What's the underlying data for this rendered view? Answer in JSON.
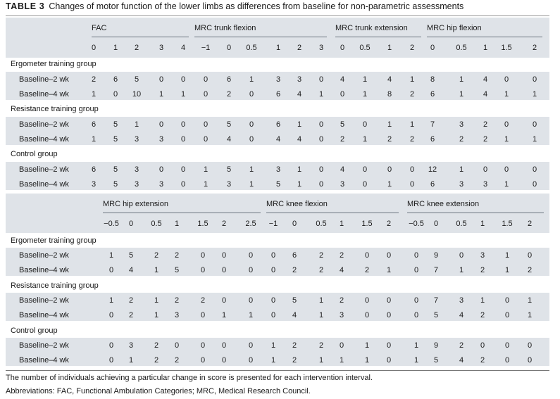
{
  "caption": {
    "label": "TABLE 3",
    "title": "Changes of motor function of the lower limbs as differences from baseline for non-parametric assessments"
  },
  "panels": [
    {
      "groups": [
        {
          "label": "FAC",
          "cols": [
            "0",
            "1",
            "2",
            "3",
            "4"
          ]
        },
        {
          "label": "MRC trunk flexion",
          "cols": [
            "−1",
            "0",
            "0.5",
            "1",
            "2",
            "3"
          ]
        },
        {
          "label": "MRC trunk extension",
          "cols": [
            "0",
            "0.5",
            "1",
            "2"
          ]
        },
        {
          "label": "MRC hip flexion",
          "cols": [
            "0",
            "0.5",
            "1",
            "1.5",
            "2"
          ]
        }
      ],
      "sections": [
        {
          "label": "Ergometer training group",
          "rows": [
            {
              "label": "Baseline–2 wk",
              "values": [
                "2",
                "6",
                "5",
                "0",
                "0",
                "0",
                "6",
                "1",
                "3",
                "3",
                "0",
                "4",
                "1",
                "4",
                "1",
                "8",
                "1",
                "4",
                "0",
                "0"
              ]
            },
            {
              "label": "Baseline–4 wk",
              "values": [
                "1",
                "0",
                "10",
                "1",
                "1",
                "0",
                "2",
                "0",
                "6",
                "4",
                "1",
                "0",
                "1",
                "8",
                "2",
                "6",
                "1",
                "4",
                "1",
                "1"
              ]
            }
          ]
        },
        {
          "label": "Resistance training group",
          "rows": [
            {
              "label": "Baseline–2 wk",
              "values": [
                "6",
                "5",
                "1",
                "0",
                "0",
                "0",
                "5",
                "0",
                "6",
                "1",
                "0",
                "5",
                "0",
                "1",
                "1",
                "7",
                "3",
                "2",
                "0",
                "0"
              ]
            },
            {
              "label": "Baseline–4 wk",
              "values": [
                "1",
                "5",
                "3",
                "3",
                "0",
                "0",
                "4",
                "0",
                "4",
                "4",
                "0",
                "2",
                "1",
                "2",
                "2",
                "6",
                "2",
                "2",
                "1",
                "1"
              ]
            }
          ]
        },
        {
          "label": "Control group",
          "rows": [
            {
              "label": "Baseline–2 wk",
              "values": [
                "6",
                "5",
                "3",
                "0",
                "0",
                "1",
                "5",
                "1",
                "3",
                "1",
                "0",
                "4",
                "0",
                "0",
                "0",
                "12",
                "1",
                "0",
                "0",
                "0"
              ]
            },
            {
              "label": "Baseline–4 wk",
              "values": [
                "3",
                "5",
                "3",
                "3",
                "0",
                "1",
                "3",
                "1",
                "5",
                "1",
                "0",
                "3",
                "0",
                "1",
                "0",
                "6",
                "3",
                "3",
                "1",
                "0"
              ]
            }
          ]
        }
      ]
    },
    {
      "groups": [
        {
          "label": "MRC hip extension",
          "cols": [
            "−0.5",
            "0",
            "0.5",
            "1",
            "1.5",
            "2",
            "2.5"
          ]
        },
        {
          "label": "MRC knee flexion",
          "cols": [
            "−1",
            "0",
            "0.5",
            "1",
            "1.5",
            "2"
          ]
        },
        {
          "label": "MRC knee extension",
          "cols": [
            "−0.5",
            "0",
            "0.5",
            "1",
            "1.5",
            "2"
          ]
        }
      ],
      "sections": [
        {
          "label": "Ergometer training group",
          "rows": [
            {
              "label": "Baseline–2 wk",
              "values": [
                "1",
                "5",
                "2",
                "2",
                "0",
                "0",
                "0",
                "0",
                "6",
                "2",
                "2",
                "0",
                "0",
                "0",
                "9",
                "0",
                "3",
                "1",
                "0"
              ]
            },
            {
              "label": "Baseline–4 wk",
              "values": [
                "0",
                "4",
                "1",
                "5",
                "0",
                "0",
                "0",
                "0",
                "2",
                "2",
                "4",
                "2",
                "1",
                "0",
                "7",
                "1",
                "2",
                "1",
                "2"
              ]
            }
          ]
        },
        {
          "label": "Resistance training group",
          "rows": [
            {
              "label": "Baseline–2 wk",
              "values": [
                "1",
                "2",
                "1",
                "2",
                "2",
                "0",
                "0",
                "0",
                "5",
                "1",
                "2",
                "0",
                "0",
                "0",
                "7",
                "3",
                "1",
                "0",
                "1"
              ]
            },
            {
              "label": "Baseline–4 wk",
              "values": [
                "0",
                "2",
                "1",
                "3",
                "0",
                "1",
                "1",
                "0",
                "4",
                "1",
                "3",
                "0",
                "0",
                "0",
                "5",
                "4",
                "2",
                "0",
                "1"
              ]
            }
          ]
        },
        {
          "label": "Control group",
          "rows": [
            {
              "label": "Baseline–2 wk",
              "values": [
                "0",
                "3",
                "2",
                "0",
                "0",
                "0",
                "0",
                "1",
                "2",
                "2",
                "0",
                "1",
                "0",
                "1",
                "9",
                "2",
                "0",
                "0",
                "0"
              ]
            },
            {
              "label": "Baseline–4 wk",
              "values": [
                "0",
                "1",
                "2",
                "2",
                "0",
                "0",
                "0",
                "1",
                "2",
                "1",
                "1",
                "1",
                "0",
                "1",
                "5",
                "4",
                "2",
                "0",
                "0"
              ]
            }
          ]
        }
      ]
    }
  ],
  "footnotes": [
    "The number of individuals achieving a particular change in score is presented for each intervention interval.",
    "Abbreviations: FAC, Functional Ambulation Categories; MRC, Medical Research Council."
  ]
}
